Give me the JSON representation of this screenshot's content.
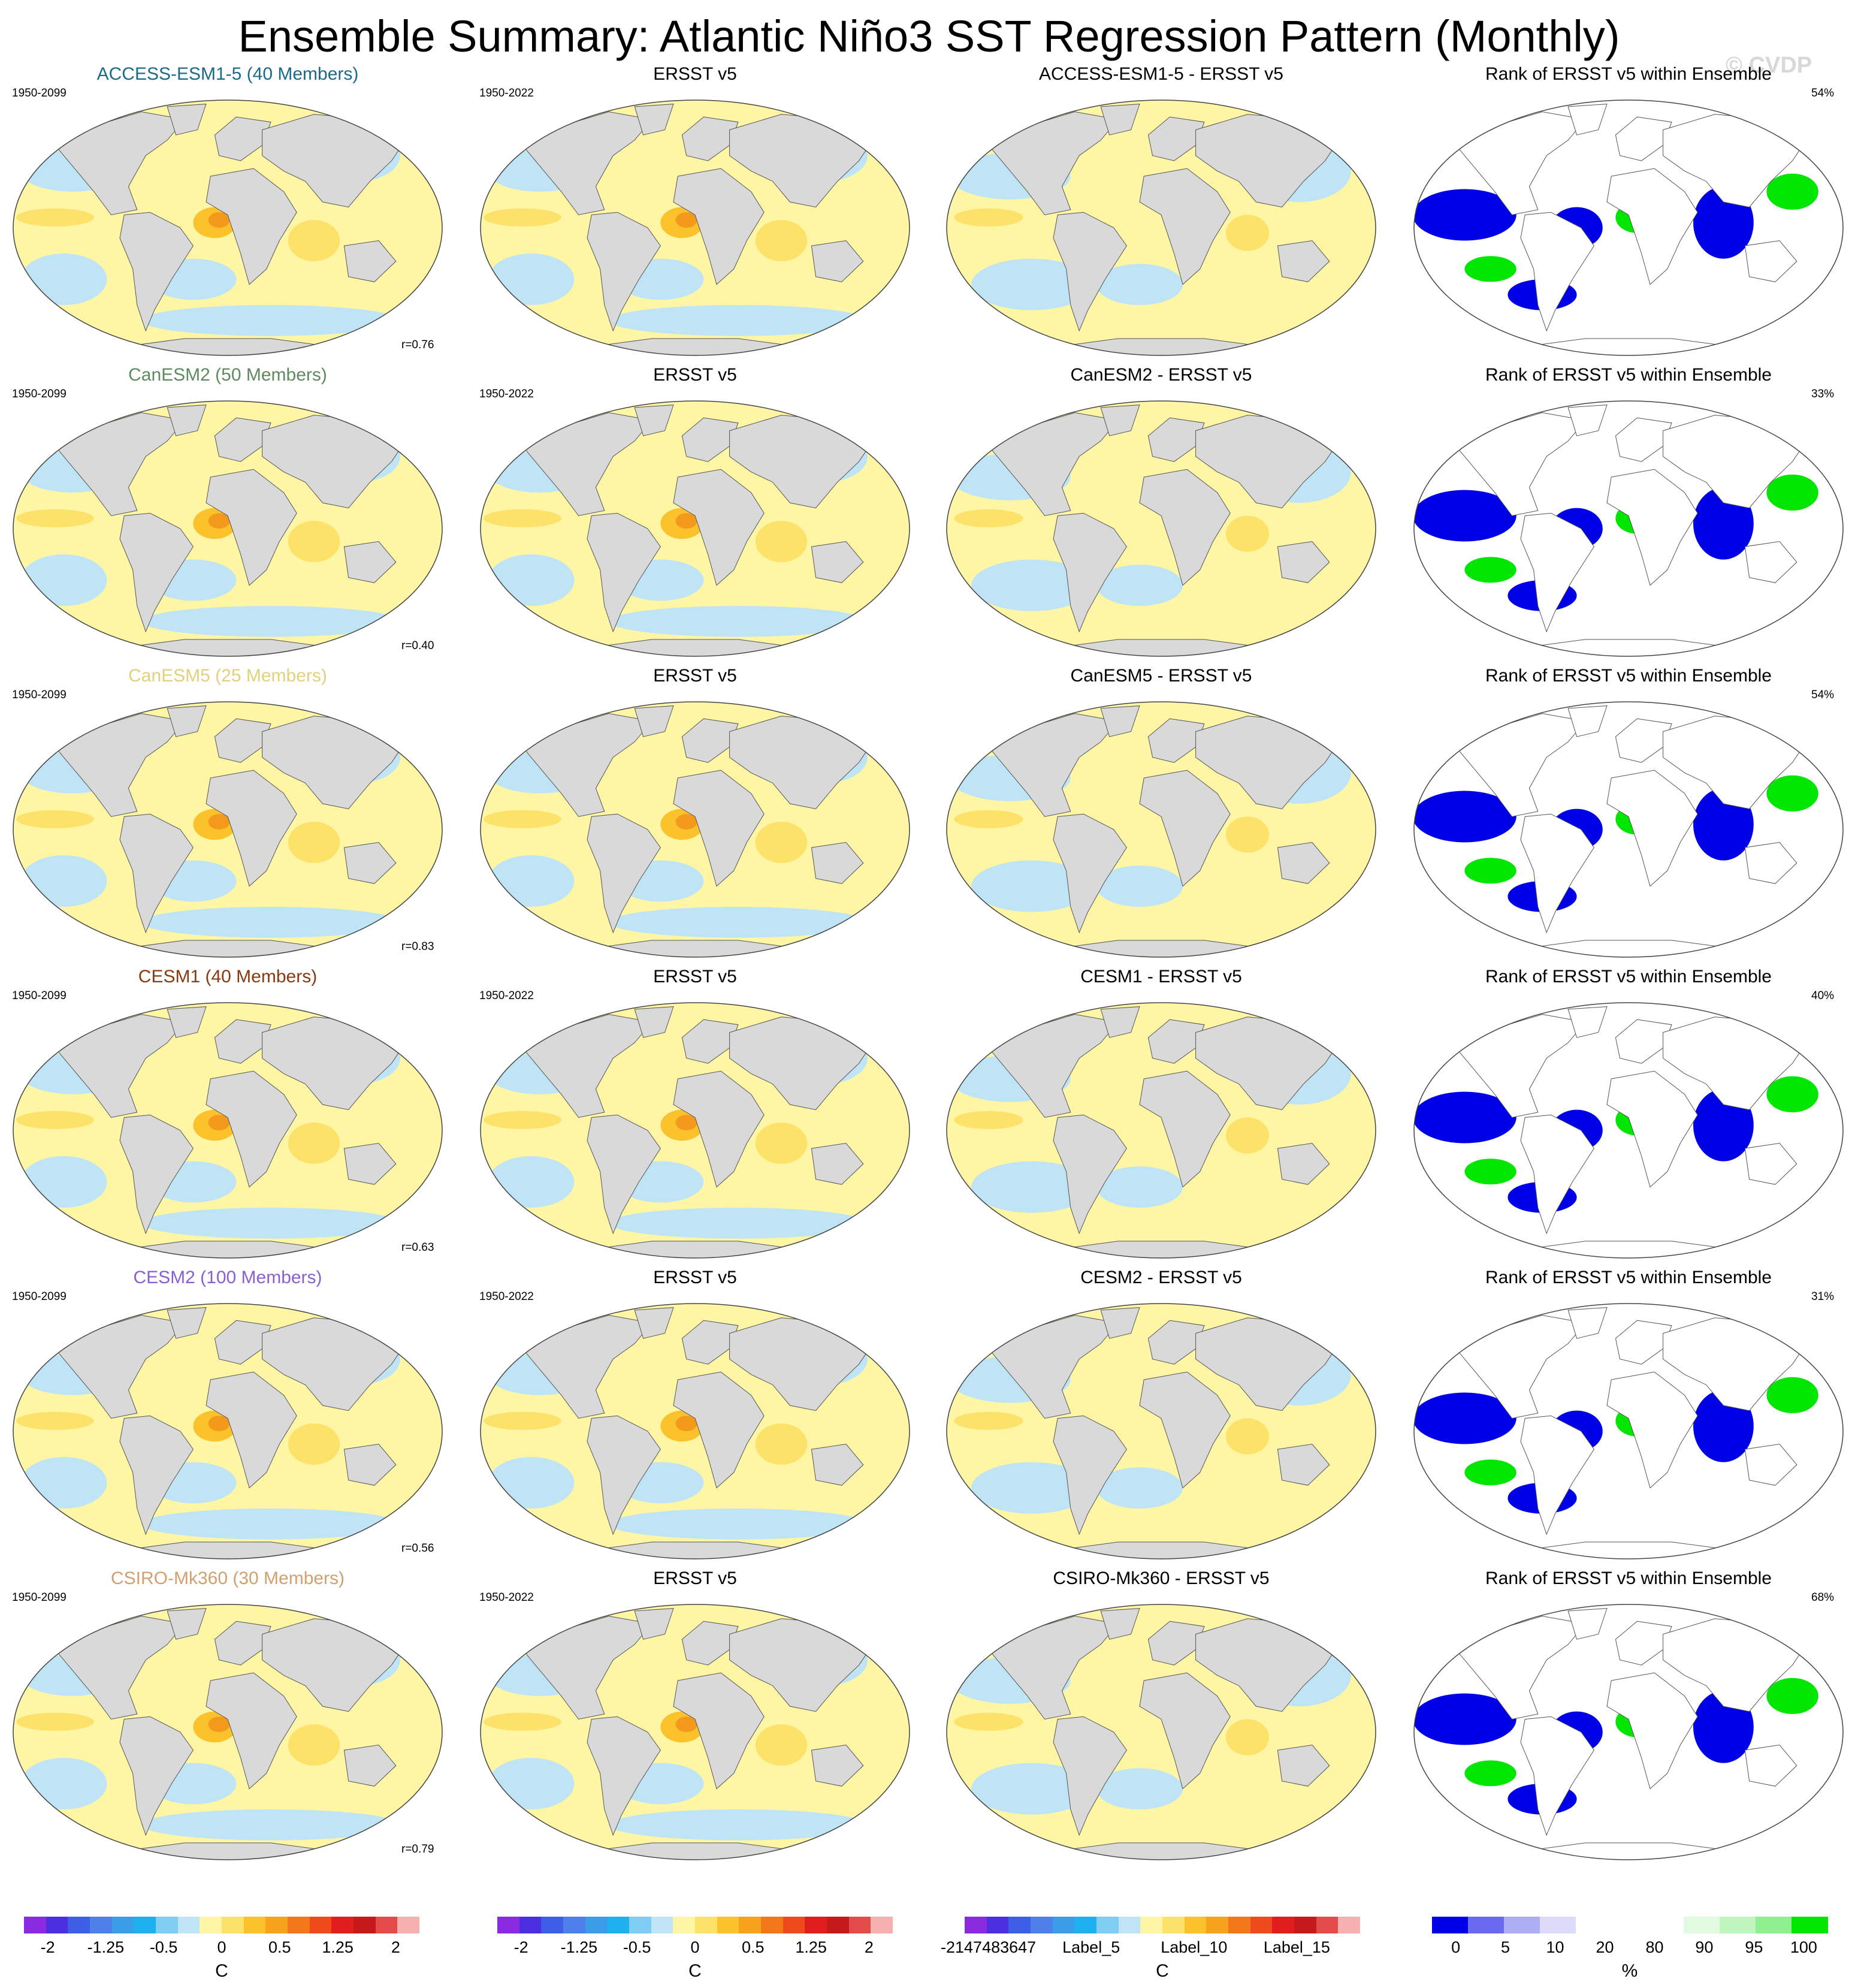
{
  "title": "Ensemble Summary: Atlantic Niño3 SST Regression Pattern (Monthly)",
  "watermark": "© CVDP",
  "colors": {
    "land": "#d9d9d9",
    "ocean_neg_weak": "#bfe4f5",
    "ocean_pos_weak": "#fef5a5",
    "ocean_pos_mid": "#fde26a",
    "ocean_pos_strong": "#fbc22c",
    "ocean_pos_max": "#f39a1d",
    "rank_low": "#0000e6",
    "rank_mid": "#ffffff",
    "rank_high": "#00e600"
  },
  "rows": [
    {
      "model": "ACCESS-ESM1-5 (40 Members)",
      "model_color": "#1a6a8a",
      "model_years": "1950-2099",
      "obs_title": "ERSST v5",
      "obs_years": "1950-2022",
      "diff_title": "ACCESS-ESM1-5 - ERSST v5",
      "rank_title": "Rank of ERSST v5 within Ensemble",
      "r": "r=0.76",
      "pct": "54%"
    },
    {
      "model": "CanESM2 (50 Members)",
      "model_color": "#5f8a5f",
      "model_years": "1950-2099",
      "obs_title": "ERSST v5",
      "obs_years": "1950-2022",
      "diff_title": "CanESM2 - ERSST v5",
      "rank_title": "Rank of ERSST v5 within Ensemble",
      "r": "r=0.40",
      "pct": "33%"
    },
    {
      "model": "CanESM5 (25 Members)",
      "model_color": "#e3d07a",
      "model_years": "1950-2099",
      "obs_title": "ERSST v5",
      "obs_years": "",
      "diff_title": "CanESM5 - ERSST v5",
      "rank_title": "Rank of ERSST v5 within Ensemble",
      "r": "r=0.83",
      "pct": "54%"
    },
    {
      "model": "CESM1 (40 Members)",
      "model_color": "#8b3a10",
      "model_years": "1950-2099",
      "obs_title": "ERSST v5",
      "obs_years": "1950-2022",
      "diff_title": "CESM1 - ERSST v5",
      "rank_title": "Rank of ERSST v5 within Ensemble",
      "r": "r=0.63",
      "pct": "40%"
    },
    {
      "model": "CESM2 (100 Members)",
      "model_color": "#8a5fd0",
      "model_years": "1950-2099",
      "obs_title": "ERSST v5",
      "obs_years": "1950-2022",
      "diff_title": "CESM2 - ERSST v5",
      "rank_title": "Rank of ERSST v5 within Ensemble",
      "r": "r=0.56",
      "pct": "31%"
    },
    {
      "model": "CSIRO-Mk360 (30 Members)",
      "model_color": "#d2a070",
      "model_years": "1950-2099",
      "obs_title": "ERSST v5",
      "obs_years": "1950-2022",
      "diff_title": "CSIRO-Mk360 - ERSST v5",
      "rank_title": "Rank of ERSST v5 within Ensemble",
      "r": "r=0.79",
      "pct": "68%"
    }
  ],
  "colorbars": {
    "sst": {
      "colors": [
        "#8a2be2",
        "#4b2fe0",
        "#3c5fe6",
        "#4f7fe8",
        "#3a9de8",
        "#1fb0f0",
        "#7fcdf2",
        "#bfe4f5",
        "#fef5a5",
        "#fde26a",
        "#fbc22c",
        "#f7a21c",
        "#f3781a",
        "#ee4a1c",
        "#e21d1d",
        "#c41a1a",
        "#e34a4a",
        "#f7b0b0"
      ],
      "ticks": [
        "-2",
        "-1.25",
        "-0.5",
        "0",
        "0.5",
        "1.25",
        "2"
      ],
      "unit": "C"
    },
    "diff": {
      "colors": [
        "#8a2be2",
        "#4b2fe0",
        "#3c5fe6",
        "#4f7fe8",
        "#3a9de8",
        "#1fb0f0",
        "#7fcdf2",
        "#bfe4f5",
        "#fef5a5",
        "#fde26a",
        "#fbc22c",
        "#f7a21c",
        "#f3781a",
        "#ee4a1c",
        "#e21d1d",
        "#c41a1a",
        "#e34a4a",
        "#f7b0b0"
      ],
      "ticks": [
        "-2147483647",
        "Label_5",
        "Label_10",
        "Label_15"
      ],
      "unit": "C"
    },
    "rank": {
      "colors": [
        "#0000e6",
        "#6a6af0",
        "#aeaef5",
        "#dcdcfa",
        "#ffffff",
        "#ffffff",
        "#ffffff",
        "#e0fbe0",
        "#bff5bf",
        "#8ff08f",
        "#00e600"
      ],
      "ticks": [
        "0",
        "5",
        "10",
        "20",
        "80",
        "90",
        "95",
        "100"
      ],
      "unit": "%"
    }
  }
}
